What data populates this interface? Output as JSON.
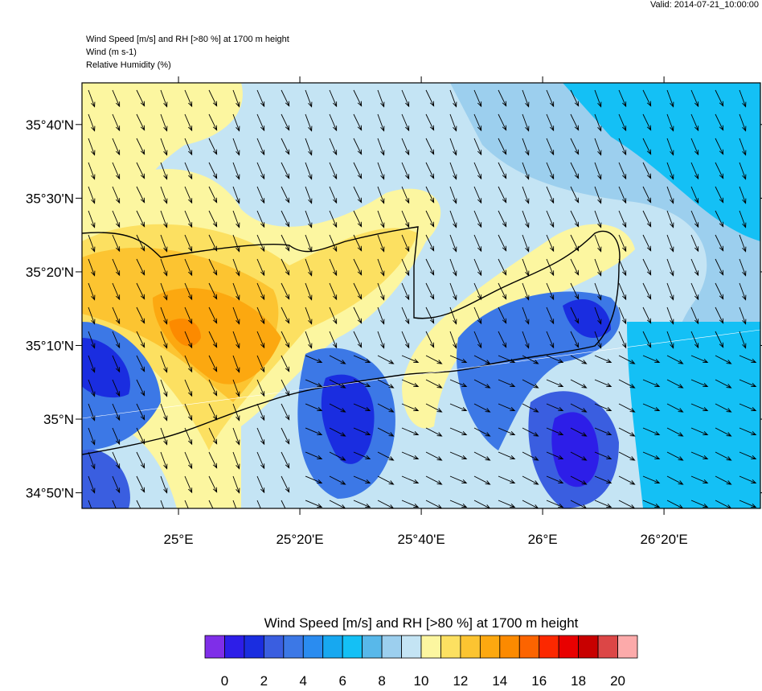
{
  "header": {
    "valid": "Valid: 2014-07-21_10:00:00",
    "lines": [
      "Wind Speed [m/s] and RH [>80 %] at 1700 m height",
      "Wind   (m s-1)",
      "Relative Humidity   (%)"
    ]
  },
  "map": {
    "xlim": [
      24.735,
      26.598
    ],
    "ylim": [
      34.798,
      35.761
    ],
    "lat_ticks": [
      {
        "value": 35.6667,
        "label": "35°40'N"
      },
      {
        "value": 35.5,
        "label": "35°30'N"
      },
      {
        "value": 35.3333,
        "label": "35°20'N"
      },
      {
        "value": 35.1667,
        "label": "35°10'N"
      },
      {
        "value": 35,
        "label": "35°N"
      },
      {
        "value": 34.8333,
        "label": "34°50'N"
      }
    ],
    "lon_ticks": [
      {
        "value": 25,
        "label": "25°E"
      },
      {
        "value": 25.3333,
        "label": "25°20'E"
      },
      {
        "value": 25.6667,
        "label": "25°40'E"
      },
      {
        "value": 26,
        "label": "26°E"
      },
      {
        "value": 26.3333,
        "label": "26°20'E"
      }
    ]
  },
  "colorbar": {
    "title": "Wind Speed [m/s] and RH [>80 %] at 1700 m height",
    "colors": [
      "#7f2ee8",
      "#2d1ee8",
      "#1a2de0",
      "#3a5ee0",
      "#3c78e6",
      "#2a8cf0",
      "#17a8f0",
      "#14c0f5",
      "#58b8ea",
      "#9ccfee",
      "#c4e4f4",
      "#fcf6a0",
      "#fce061",
      "#fcc431",
      "#fca810",
      "#fc8a00",
      "#fc6400",
      "#fc2800",
      "#e80000",
      "#c80000",
      "#dc4646",
      "#fcaaaa"
    ],
    "ticks": [
      0,
      2,
      4,
      6,
      8,
      10,
      12,
      14,
      16,
      18,
      20
    ]
  }
}
